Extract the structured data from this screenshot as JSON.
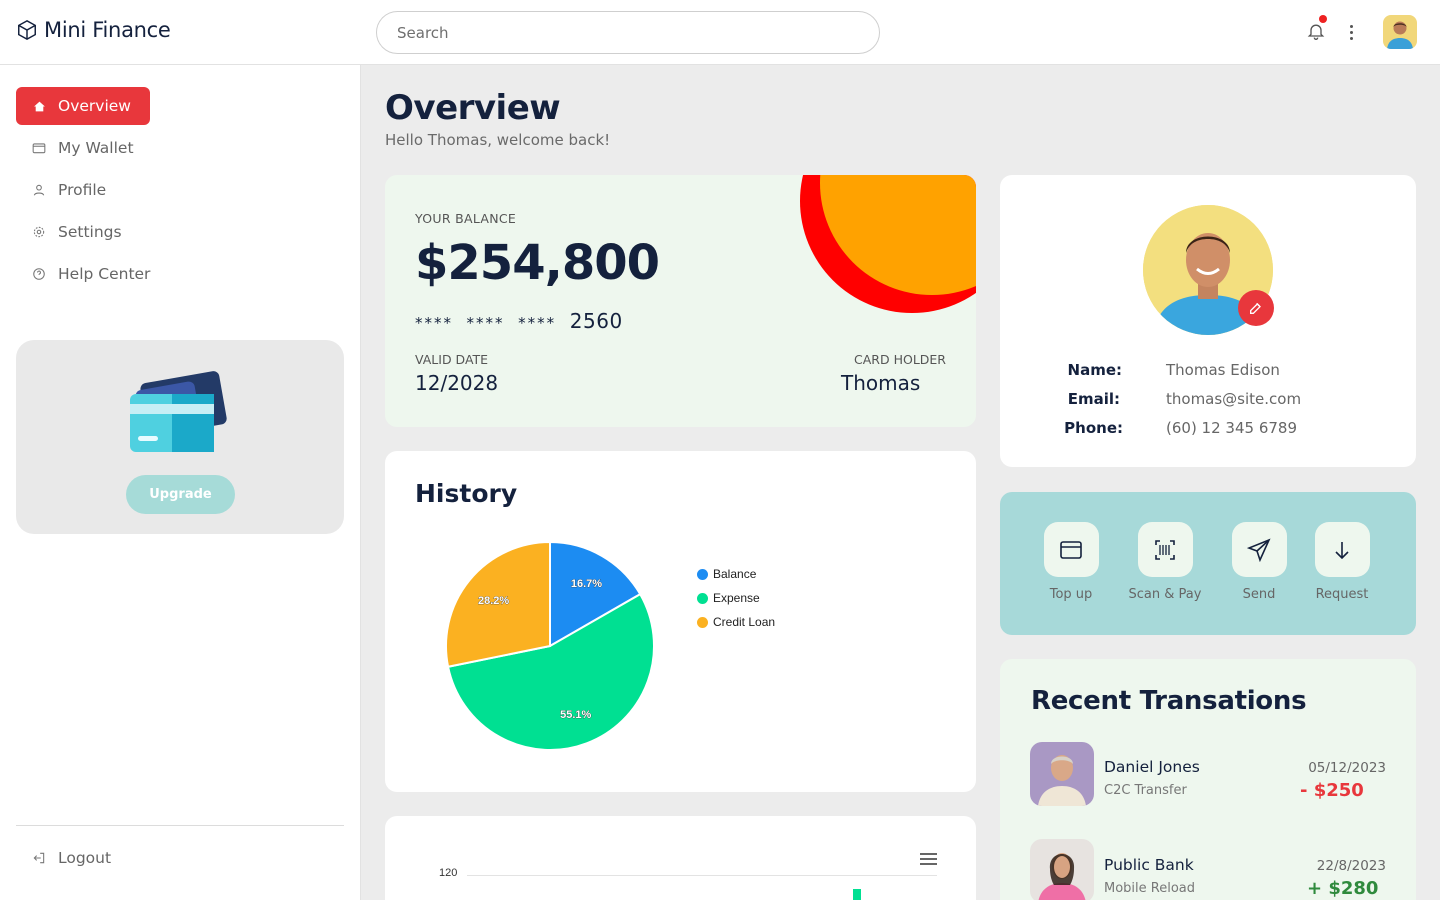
{
  "app": {
    "name": "Mini Finance"
  },
  "search": {
    "placeholder": "Search"
  },
  "sidebar": {
    "items": [
      {
        "label": "Overview",
        "icon": "home-icon",
        "active": true
      },
      {
        "label": "My Wallet",
        "icon": "wallet-icon",
        "active": false
      },
      {
        "label": "Profile",
        "icon": "user-icon",
        "active": false
      },
      {
        "label": "Settings",
        "icon": "gear-icon",
        "active": false
      },
      {
        "label": "Help Center",
        "icon": "help-icon",
        "active": false
      }
    ],
    "upgrade_label": "Upgrade",
    "logout_label": "Logout"
  },
  "page": {
    "title": "Overview",
    "subtitle": "Hello Thomas, welcome back!"
  },
  "balance": {
    "label": "YOUR BALANCE",
    "amount": "$254,800",
    "card_mask": "****  ****  ****",
    "card_last4": "2560",
    "valid_label": "VALID DATE",
    "valid_value": "12/2028",
    "holder_label": "CARD HOLDER",
    "holder_value": "Thomas"
  },
  "history": {
    "title": "History",
    "slice_labels": [
      "16.7%",
      "55.1%",
      "28.2%"
    ]
  },
  "chart_data": [
    {
      "type": "pie",
      "title": "History",
      "categories": [
        "Balance",
        "Expense",
        "Credit Loan"
      ],
      "values": [
        16.7,
        55.1,
        28.2
      ],
      "colors": [
        "#1c8cf2",
        "#00e092",
        "#fbb121"
      ],
      "legend": "right"
    },
    {
      "type": "bar",
      "ytick_labels": [
        "120"
      ]
    }
  ],
  "profile": {
    "name_label": "Name:",
    "name": "Thomas Edison",
    "email_label": "Email:",
    "email": "thomas@site.com",
    "phone_label": "Phone:",
    "phone": "(60) 12 345 6789"
  },
  "actions": [
    {
      "label": "Top up",
      "icon": "card-icon"
    },
    {
      "label": "Scan & Pay",
      "icon": "barcode-scan-icon"
    },
    {
      "label": "Send",
      "icon": "send-icon"
    },
    {
      "label": "Request",
      "icon": "arrow-down-icon"
    }
  ],
  "transactions": {
    "title": "Recent Transations",
    "items": [
      {
        "name": "Daniel Jones",
        "type": "C2C Transfer",
        "date": "05/12/2023",
        "amount": "- $250",
        "color": "#e8373c"
      },
      {
        "name": "Public Bank",
        "type": "Mobile Reload",
        "date": "22/8/2023",
        "amount": "+ $280",
        "color": "#2f8a3d"
      }
    ]
  },
  "colors": {
    "accent": "#e8373c",
    "navy": "#14213d",
    "mint": "#eef7ee",
    "teal": "#a7d9d9"
  }
}
